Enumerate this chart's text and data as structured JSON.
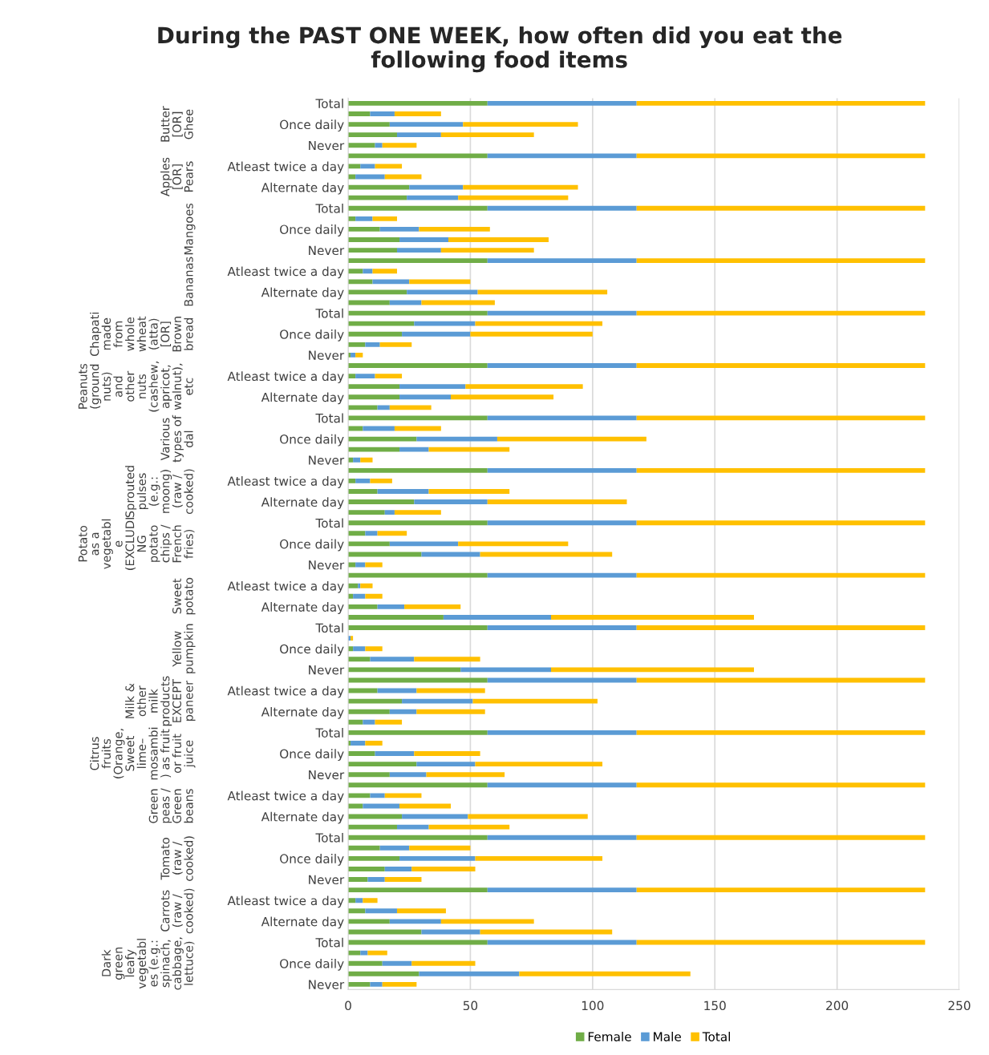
{
  "chart_data": {
    "type": "bar",
    "orientation": "horizontal",
    "stacked": true,
    "title": "During the PAST ONE WEEK, how often did you eat the\nfollowing food items",
    "categories": [
      "Total",
      null,
      "Once daily",
      null,
      "Never",
      null,
      "Atleast twice a day",
      null,
      "Alternate day",
      null,
      "Total",
      null,
      "Once daily",
      null,
      "Never",
      null,
      "Atleast twice a day",
      null,
      "Alternate day",
      null,
      "Total",
      null,
      "Once daily",
      null,
      "Never",
      null,
      "Atleast twice a day",
      null,
      "Alternate day",
      null,
      "Total",
      null,
      "Once daily",
      null,
      "Never",
      null,
      "Atleast twice a day",
      null,
      "Alternate day",
      null,
      "Total",
      null,
      "Once daily",
      null,
      "Never",
      null,
      "Atleast twice a day",
      null,
      "Alternate day",
      null,
      "Total",
      null,
      "Once daily",
      null,
      "Never",
      null,
      "Atleast twice a day",
      null,
      "Alternate day",
      null,
      "Total",
      null,
      "Once daily",
      null,
      "Never",
      null,
      "Atleast twice a day",
      null,
      "Alternate day",
      null,
      "Total",
      null,
      "Once daily",
      null,
      "Never",
      null,
      "Atleast twice a day",
      null,
      "Alternate day",
      null,
      "Total",
      null,
      "Once daily",
      null,
      "Never"
    ],
    "series": [
      {
        "name": "Female",
        "color": "#70ad47",
        "values": [
          57,
          9,
          17,
          20,
          11,
          57,
          5,
          3,
          25,
          24,
          57,
          3,
          13,
          21,
          20,
          57,
          6,
          10,
          24,
          17,
          57,
          27,
          22,
          7,
          1,
          57,
          3,
          21,
          21,
          12,
          57,
          6,
          28,
          21,
          2,
          57,
          3,
          12,
          27,
          15,
          57,
          7,
          17,
          30,
          3,
          57,
          4,
          2,
          12,
          39,
          57,
          0,
          2,
          9,
          46,
          57,
          12,
          22,
          17,
          6,
          57,
          1,
          11,
          28,
          17,
          57,
          9,
          6,
          22,
          20,
          57,
          13,
          21,
          15,
          8,
          57,
          3,
          7,
          17,
          30,
          57,
          5,
          14,
          29,
          9
        ]
      },
      {
        "name": "Male",
        "color": "#5b9bd5",
        "values": [
          61,
          10,
          30,
          18,
          3,
          61,
          6,
          12,
          22,
          21,
          61,
          7,
          16,
          20,
          18,
          61,
          4,
          15,
          29,
          13,
          61,
          25,
          28,
          6,
          2,
          61,
          8,
          27,
          21,
          5,
          61,
          13,
          33,
          12,
          3,
          61,
          6,
          21,
          30,
          4,
          61,
          5,
          28,
          24,
          4,
          61,
          1,
          5,
          11,
          44,
          61,
          1,
          5,
          18,
          37,
          61,
          16,
          29,
          11,
          5,
          61,
          6,
          16,
          24,
          15,
          61,
          6,
          15,
          27,
          13,
          61,
          12,
          31,
          11,
          7,
          61,
          3,
          13,
          21,
          24,
          61,
          3,
          12,
          41,
          5
        ]
      },
      {
        "name": "Total",
        "color": "#ffc000",
        "values": [
          118,
          19,
          47,
          38,
          14,
          118,
          11,
          15,
          47,
          45,
          118,
          10,
          29,
          41,
          38,
          118,
          10,
          25,
          53,
          30,
          118,
          52,
          50,
          13,
          3,
          118,
          11,
          48,
          42,
          17,
          118,
          19,
          61,
          33,
          5,
          118,
          9,
          33,
          57,
          19,
          118,
          12,
          45,
          54,
          7,
          118,
          5,
          7,
          23,
          83,
          118,
          1,
          7,
          27,
          83,
          118,
          28,
          51,
          28,
          11,
          118,
          7,
          27,
          52,
          32,
          118,
          15,
          21,
          49,
          33,
          118,
          25,
          52,
          26,
          15,
          118,
          6,
          20,
          38,
          54,
          118,
          8,
          26,
          70,
          14
        ]
      }
    ],
    "annotations": [
      "Butter\n[OR]\nGhee",
      "Apples\n[OR]\nPears",
      "Mangoes",
      "Bananas",
      "Chapati\nmade\nfrom\nwhole\nwheat\n(atta)\n[OR]\nBrown\nbread",
      "Peanuts\n(ground\nnuts)\nand\nother\nnuts\n(cashew,\napricot,\nwalnut),\netc",
      "Various\ntypes of\ndal",
      "Sprouted\npulses\n(e.g.:\nmoong)\n(raw /\ncooked)",
      "Potato\nas a\nvegetabl\ne\n(EXCLUDI\nNG\npotato\nchips /\nFrench\nfries)",
      "Sweet\npotato",
      "Yellow\npumpkin",
      "Milk &\nother\nmilk\nproducts\nEXCEPT\npaneer",
      "Citrus\nfruits\n(Orange,\nSweet\nlime–\nmosambi\n) as fruit\nor fruit\njuice",
      "Green\npeas /\nGreen\nbeans",
      "Tomato\n(raw /\ncooked)",
      "Carrots\n(raw /\ncooked)",
      "Dark\ngreen\nleafy\nvegetabl\nes (e.g.:\nspinach,\ncabbage,\nlettuce)"
    ],
    "xlim": [
      0,
      250
    ],
    "xticks": [
      0,
      50,
      100,
      150,
      200,
      250
    ],
    "grid": "x",
    "legend": "bottom"
  }
}
